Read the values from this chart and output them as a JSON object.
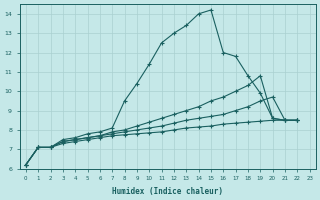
{
  "xlabel": "Humidex (Indice chaleur)",
  "background_color": "#c5e8e8",
  "grid_color": "#aad0d0",
  "line_color": "#1a6060",
  "xlim": [
    -0.5,
    23.5
  ],
  "ylim": [
    6,
    14.5
  ],
  "yticks": [
    6,
    7,
    8,
    9,
    10,
    11,
    12,
    13,
    14
  ],
  "xticks": [
    0,
    1,
    2,
    3,
    4,
    5,
    6,
    7,
    8,
    9,
    10,
    11,
    12,
    13,
    14,
    15,
    16,
    17,
    18,
    19,
    20,
    21,
    22,
    23
  ],
  "series": [
    {
      "x": [
        0,
        1,
        2,
        3,
        4,
        5,
        6,
        7,
        8,
        9,
        10,
        11,
        12,
        13,
        14,
        15,
        16,
        17,
        18,
        19,
        20,
        21,
        22
      ],
      "y": [
        6.2,
        7.1,
        7.1,
        7.5,
        7.6,
        7.8,
        7.9,
        8.1,
        9.5,
        10.4,
        11.4,
        12.5,
        13.0,
        13.4,
        14.0,
        14.2,
        12.0,
        11.8,
        10.8,
        9.9,
        8.6,
        8.5,
        8.5
      ]
    },
    {
      "x": [
        0,
        1,
        2,
        3,
        4,
        5,
        6,
        7,
        8,
        9,
        10,
        11,
        12,
        13,
        14,
        15,
        16,
        17,
        18,
        19,
        20,
        21,
        22
      ],
      "y": [
        6.2,
        7.1,
        7.1,
        7.4,
        7.5,
        7.6,
        7.7,
        7.9,
        8.0,
        8.2,
        8.4,
        8.6,
        8.8,
        9.0,
        9.2,
        9.5,
        9.7,
        10.0,
        10.3,
        10.8,
        8.6,
        8.5,
        8.5
      ]
    },
    {
      "x": [
        0,
        1,
        2,
        3,
        4,
        5,
        6,
        7,
        8,
        9,
        10,
        11,
        12,
        13,
        14,
        15,
        16,
        17,
        18,
        19,
        20,
        21,
        22
      ],
      "y": [
        6.2,
        7.1,
        7.1,
        7.4,
        7.5,
        7.6,
        7.7,
        7.8,
        7.9,
        8.0,
        8.1,
        8.2,
        8.35,
        8.5,
        8.6,
        8.7,
        8.8,
        9.0,
        9.2,
        9.5,
        9.7,
        8.5,
        8.5
      ]
    },
    {
      "x": [
        0,
        1,
        2,
        3,
        4,
        5,
        6,
        7,
        8,
        9,
        10,
        11,
        12,
        13,
        14,
        15,
        16,
        17,
        18,
        19,
        20,
        21,
        22
      ],
      "y": [
        6.2,
        7.1,
        7.1,
        7.3,
        7.4,
        7.5,
        7.6,
        7.7,
        7.75,
        7.8,
        7.85,
        7.9,
        8.0,
        8.1,
        8.15,
        8.2,
        8.3,
        8.35,
        8.4,
        8.45,
        8.5,
        8.5,
        8.5
      ]
    }
  ]
}
